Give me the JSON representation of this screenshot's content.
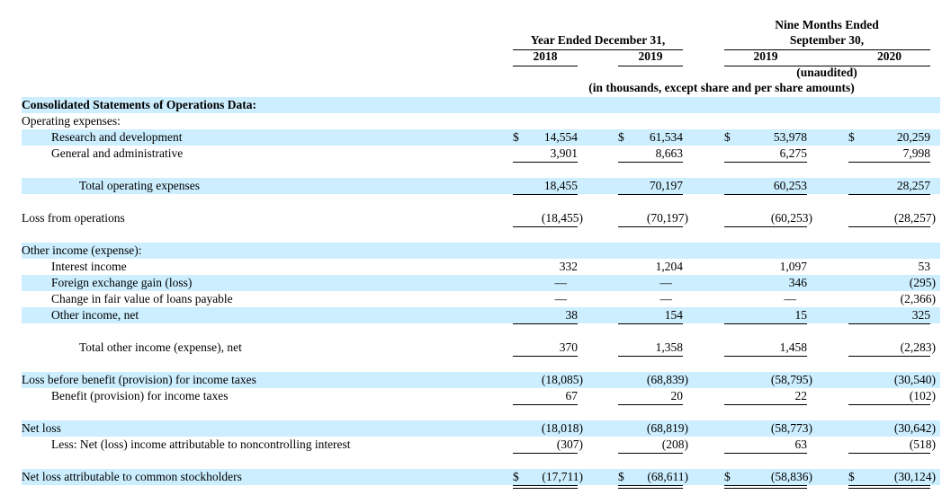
{
  "header": {
    "group1_title": "Year Ended December 31,",
    "group2_title_line1": "Nine Months Ended",
    "group2_title_line2": "September 30,",
    "years": [
      "2018",
      "2019",
      "2019",
      "2020"
    ],
    "unaudited": "(unaudited)",
    "units_note": "(in thousands, except share and per share amounts)"
  },
  "rows": [
    {
      "label": "Consolidated Statements of Operations Data:",
      "bold": true,
      "shaded": true
    },
    {
      "label": "Operating expenses:"
    },
    {
      "label": "Research and development",
      "indent": 1,
      "shaded": true,
      "dollar": true,
      "values": [
        "14,554",
        "61,534",
        "53,978",
        "20,259"
      ]
    },
    {
      "label": "General and administrative",
      "indent": 1,
      "underline": "single",
      "values": [
        "3,901",
        "8,663",
        "6,275",
        "7,998"
      ]
    },
    {
      "blank": true
    },
    {
      "label": "Total operating expenses",
      "indent": 2,
      "shaded": true,
      "underline": "single",
      "values": [
        "18,455",
        "70,197",
        "60,253",
        "28,257"
      ]
    },
    {
      "blank": true
    },
    {
      "label": "Loss from operations",
      "underline": "single",
      "values": [
        "(18,455)",
        "(70,197)",
        "(60,253)",
        "(28,257)"
      ]
    },
    {
      "blank": true
    },
    {
      "label": "Other income (expense):",
      "shaded": true
    },
    {
      "label": "Interest income",
      "indent": 1,
      "values": [
        "332",
        "1,204",
        "1,097",
        "53"
      ]
    },
    {
      "label": "Foreign exchange gain (loss)",
      "indent": 1,
      "shaded": true,
      "values": [
        "—",
        "—",
        "346",
        "(295)"
      ]
    },
    {
      "label": "Change in fair value of loans payable",
      "indent": 1,
      "values": [
        "—",
        "—",
        "—",
        "(2,366)"
      ]
    },
    {
      "label": "Other income, net",
      "indent": 1,
      "shaded": true,
      "underline": "single",
      "values": [
        "38",
        "154",
        "15",
        "325"
      ]
    },
    {
      "blank": true
    },
    {
      "label": "Total other income (expense), net",
      "indent": 2,
      "underline": "single",
      "values": [
        "370",
        "1,358",
        "1,458",
        "(2,283)"
      ]
    },
    {
      "blank": true
    },
    {
      "label": "Loss before benefit (provision) for income taxes",
      "shaded": true,
      "values": [
        "(18,085)",
        "(68,839)",
        "(58,795)",
        "(30,540)"
      ]
    },
    {
      "label": "Benefit (provision) for income taxes",
      "indent": 1,
      "underline": "single",
      "values": [
        "67",
        "20",
        "22",
        "(102)"
      ]
    },
    {
      "blank": true
    },
    {
      "label": "Net loss",
      "shaded": true,
      "values": [
        "(18,018)",
        "(68,819)",
        "(58,773)",
        "(30,642)"
      ]
    },
    {
      "label": "Less: Net (loss) income attributable to noncontrolling interest",
      "indent": 1,
      "underline": "single",
      "values": [
        "(307)",
        "(208)",
        "63",
        "(518)"
      ]
    },
    {
      "blank": true
    },
    {
      "label": "Net loss attributable to common stockholders",
      "shaded": true,
      "dollar": true,
      "underline": "double",
      "values": [
        "(17,711)",
        "(68,611)",
        "(58,836)",
        "(30,124)"
      ]
    }
  ],
  "currency_symbol": "$",
  "colors": {
    "row_shade": "#cceeff"
  }
}
